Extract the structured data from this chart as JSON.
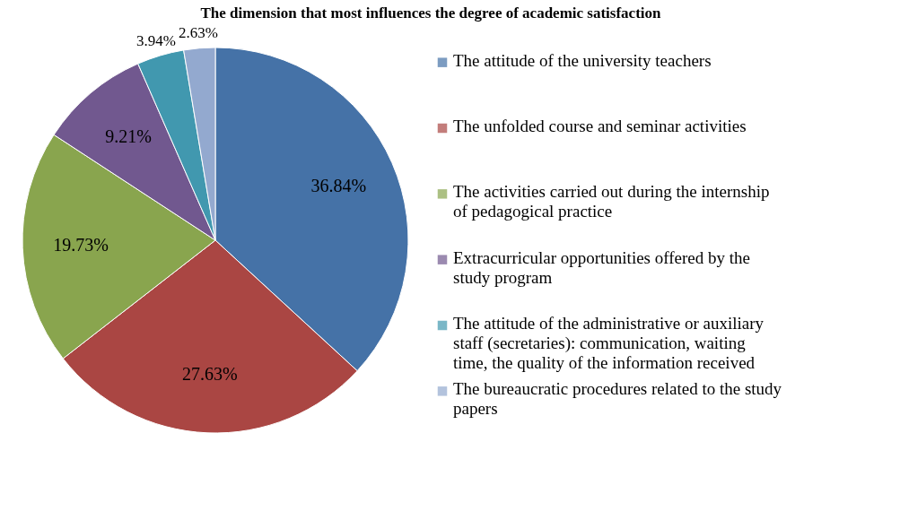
{
  "chart_data": {
    "type": "pie",
    "title": "The dimension that most influences the degree of academic satisfaction",
    "categories": [
      "The attitude of the  university teachers",
      "The unfolded course and seminar activities",
      "The activities carried out during the internship of pedagogical practice",
      "Extracurricular opportunities offered by the study program",
      "The attitude of the administrative or auxiliary staff (secretaries):  communication, waiting time, the quality of the information received",
      "The bureaucratic procedures related to the study papers"
    ],
    "values": [
      36.84,
      27.63,
      19.73,
      9.21,
      3.94,
      2.63
    ],
    "colors": [
      "#4572a7",
      "#aa4643",
      "#89a54e",
      "#71588f",
      "#4198af",
      "#93a9cf"
    ],
    "value_labels": [
      "36.84%",
      "27.63%",
      "19.73%",
      "9.21%",
      "3.94%",
      "2.63%"
    ],
    "legend": "right"
  }
}
